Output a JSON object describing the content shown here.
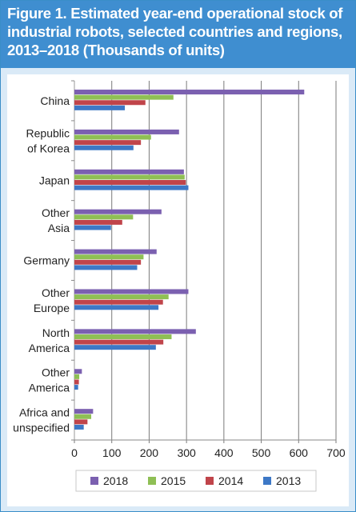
{
  "colors": {
    "header_bg": "#3f8ed0",
    "frame_bg": "#daeaf7",
    "s2018": "#7b60b0",
    "s2015": "#8fbf55",
    "s2014": "#c0444a",
    "s2013": "#3d78c6"
  },
  "chart_data": {
    "type": "bar",
    "orientation": "horizontal",
    "title": "Figure 1. Estimated year-end operational stock of industrial robots, selected countries and regions, 2013–2018 (Thousands of units)",
    "categories": [
      [
        "China"
      ],
      [
        "Republic",
        "of Korea"
      ],
      [
        "Japan"
      ],
      [
        "Other",
        "Asia"
      ],
      [
        "Germany"
      ],
      [
        "Other",
        "Europe"
      ],
      [
        "North",
        "America"
      ],
      [
        "Other",
        "America"
      ],
      [
        "Africa and",
        "unspecified"
      ]
    ],
    "series": [
      {
        "name": "2018",
        "color": "#7b60b0",
        "values": [
          615,
          280,
          293,
          233,
          220,
          305,
          325,
          20,
          50
        ]
      },
      {
        "name": "2015",
        "color": "#8fbf55",
        "values": [
          265,
          205,
          295,
          157,
          185,
          252,
          260,
          13,
          45
        ]
      },
      {
        "name": "2014",
        "color": "#c0444a",
        "values": [
          190,
          178,
          298,
          128,
          178,
          237,
          238,
          12,
          35
        ]
      },
      {
        "name": "2013",
        "color": "#3d78c6",
        "values": [
          135,
          158,
          305,
          98,
          168,
          225,
          218,
          10,
          25
        ]
      }
    ],
    "xlim": [
      0,
      700
    ],
    "xticks": [
      0,
      100,
      200,
      300,
      400,
      500,
      600,
      700
    ],
    "grid": true,
    "legend": "bottom",
    "xlabel": "",
    "ylabel": ""
  }
}
